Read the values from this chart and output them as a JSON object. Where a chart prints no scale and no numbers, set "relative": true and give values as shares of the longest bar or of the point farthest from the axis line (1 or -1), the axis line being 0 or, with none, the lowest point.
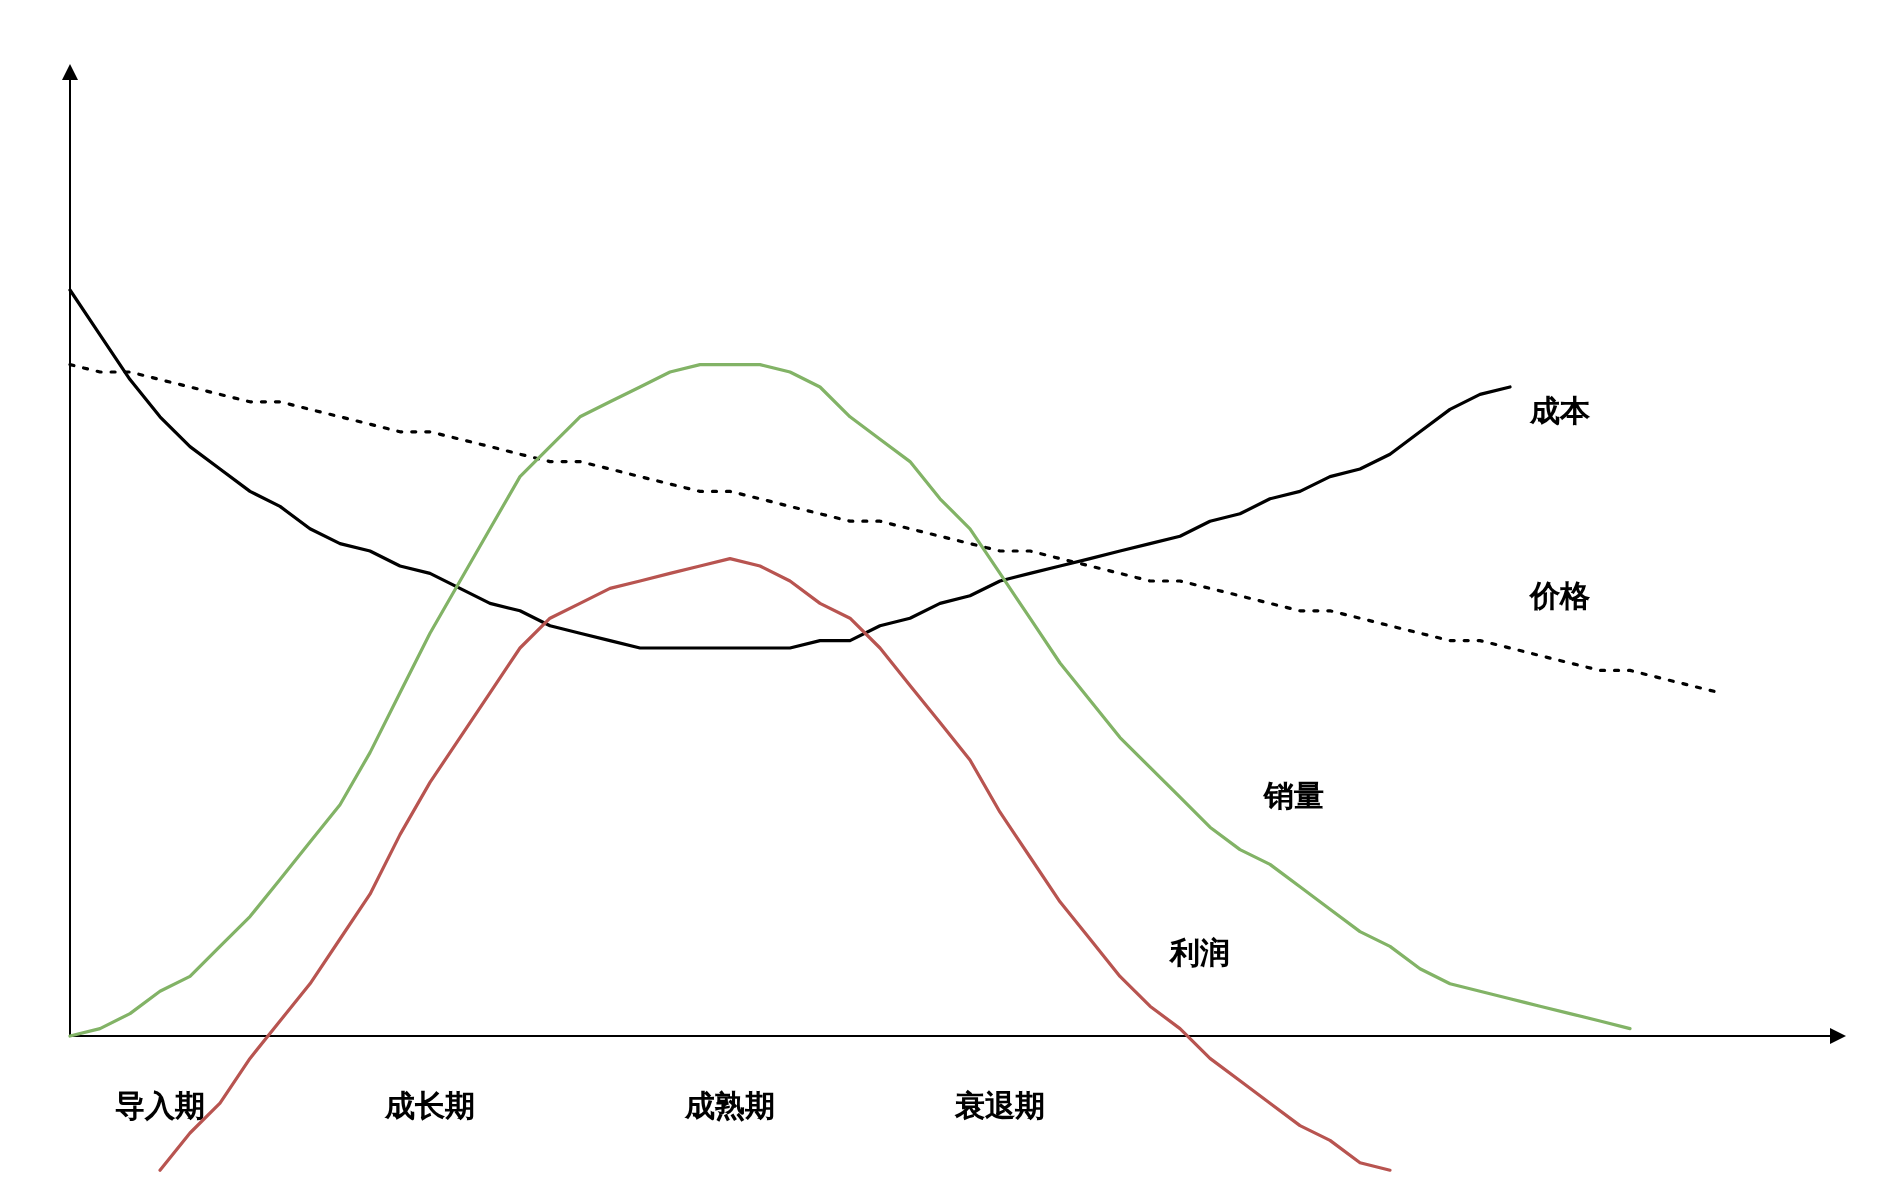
{
  "chart_data": {
    "type": "line",
    "relative": true,
    "categories": [
      null,
      null,
      null,
      "导入期",
      null,
      null,
      null,
      null,
      null,
      null,
      null,
      null,
      "成长期",
      null,
      null,
      null,
      null,
      null,
      null,
      null,
      null,
      null,
      "成熟期",
      null,
      null,
      null,
      null,
      null,
      null,
      null,
      null,
      "衰退期",
      null,
      null,
      null,
      null,
      null,
      null,
      null,
      null,
      null,
      null,
      null,
      null,
      null,
      null,
      null,
      null,
      null,
      null,
      null,
      null,
      null,
      null,
      null,
      null,
      null,
      null,
      null
    ],
    "series": [
      {
        "name": "成本",
        "color": "#000000",
        "values": [
          1.0,
          0.94,
          0.88,
          0.83,
          0.79,
          0.76,
          0.73,
          0.71,
          0.68,
          0.66,
          0.65,
          0.63,
          0.62,
          0.6,
          0.58,
          0.57,
          0.55,
          0.54,
          0.53,
          0.52,
          0.52,
          0.52,
          0.52,
          0.52,
          0.52,
          0.53,
          0.53,
          0.55,
          0.56,
          0.58,
          0.59,
          0.61,
          0.62,
          0.63,
          0.64,
          0.65,
          0.66,
          0.67,
          0.69,
          0.7,
          0.72,
          0.73,
          0.75,
          0.76,
          0.78,
          0.81,
          0.84,
          0.86,
          0.87,
          null,
          null,
          null,
          null,
          null,
          null,
          null,
          null,
          null,
          null
        ]
      },
      {
        "name": "价格",
        "color": "#000000",
        "line_style": "dotted",
        "values": [
          0.9,
          0.89,
          0.89,
          0.88,
          0.87,
          0.86,
          0.85,
          0.85,
          0.84,
          0.83,
          0.82,
          0.81,
          0.81,
          0.8,
          0.79,
          0.78,
          0.77,
          0.77,
          0.76,
          0.75,
          0.74,
          0.73,
          0.73,
          0.72,
          0.71,
          0.7,
          0.69,
          0.69,
          0.68,
          0.67,
          0.66,
          0.65,
          0.65,
          0.64,
          0.63,
          0.62,
          0.61,
          0.61,
          0.6,
          0.59,
          0.58,
          0.57,
          0.57,
          0.56,
          0.55,
          0.54,
          0.53,
          0.53,
          0.52,
          0.51,
          0.5,
          0.49,
          0.49,
          0.48,
          0.47,
          0.46,
          null,
          null,
          null
        ]
      },
      {
        "name": "销量",
        "color": "#82b366",
        "values": [
          0,
          0.01,
          0.03,
          0.06,
          0.08,
          0.12,
          0.16,
          0.21,
          0.26,
          0.31,
          0.38,
          0.46,
          0.54,
          0.61,
          0.68,
          0.75,
          0.79,
          0.83,
          0.85,
          0.87,
          0.89,
          0.9,
          0.9,
          0.9,
          0.89,
          0.87,
          0.83,
          0.8,
          0.77,
          0.72,
          0.68,
          0.62,
          0.56,
          0.5,
          0.45,
          0.4,
          0.36,
          0.32,
          0.28,
          0.25,
          0.23,
          0.2,
          0.17,
          0.14,
          0.12,
          0.09,
          0.07,
          0.06,
          0.05,
          0.04,
          0.03,
          0.02,
          0.01,
          null,
          null,
          null,
          null,
          null,
          null
        ]
      },
      {
        "name": "利润",
        "color": "#b85450",
        "values": [
          null,
          null,
          null,
          -0.18,
          -0.13,
          -0.09,
          -0.03,
          0.02,
          0.07,
          0.13,
          0.19,
          0.27,
          0.34,
          0.4,
          0.46,
          0.52,
          0.56,
          0.58,
          0.6,
          0.61,
          0.62,
          0.63,
          0.64,
          0.63,
          0.61,
          0.58,
          0.56,
          0.52,
          0.47,
          0.42,
          0.37,
          0.3,
          0.24,
          0.18,
          0.13,
          0.08,
          0.04,
          0.01,
          -0.03,
          -0.06,
          -0.09,
          -0.12,
          -0.14,
          -0.17,
          -0.18,
          null,
          null,
          null,
          null,
          null,
          null,
          null,
          null,
          null,
          null,
          null,
          null,
          null,
          null
        ]
      }
    ]
  }
}
